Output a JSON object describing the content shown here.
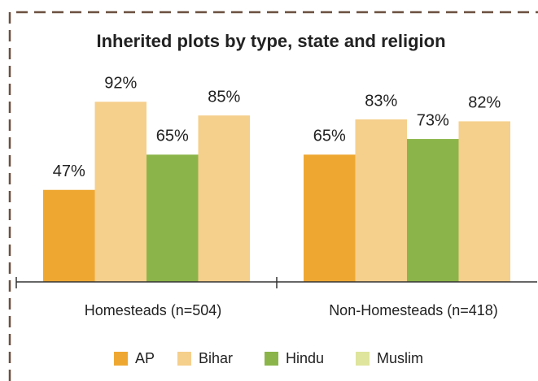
{
  "chart_data": {
    "type": "bar",
    "title": "Inherited plots by type, state and religion",
    "categories": [
      "Homesteads (n=504)",
      "Non-Homesteads (n=418)"
    ],
    "series": [
      {
        "name": "AP",
        "color": "#eea832",
        "values": [
          47,
          65
        ],
        "value_labels": [
          "47%",
          "65%"
        ]
      },
      {
        "name": "Bihar",
        "color": "#f5cf8c",
        "values": [
          92,
          83
        ],
        "value_labels": [
          "92%",
          "83%"
        ]
      },
      {
        "name": "Hindu",
        "color": "#8bb54a",
        "values": [
          65,
          73
        ],
        "value_labels": [
          "65%",
          "73%"
        ]
      },
      {
        "name": "Muslim",
        "color": "#f5cf8c",
        "legend_color": "#dfe59c",
        "values": [
          85,
          82
        ],
        "value_labels": [
          "85%",
          "82%"
        ]
      }
    ],
    "ylim": [
      0,
      100
    ],
    "legend": "bottom"
  }
}
